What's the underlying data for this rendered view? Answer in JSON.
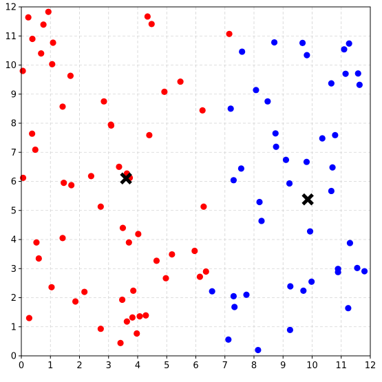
{
  "chart_data": {
    "type": "scatter",
    "title": "",
    "xlabel": "",
    "ylabel": "",
    "xlim": [
      0,
      12
    ],
    "ylim": [
      0,
      12
    ],
    "xticks": [
      0,
      1,
      2,
      3,
      4,
      5,
      6,
      7,
      8,
      9,
      10,
      11,
      12
    ],
    "yticks": [
      0,
      1,
      2,
      3,
      4,
      5,
      6,
      7,
      8,
      9,
      10,
      11,
      12
    ],
    "grid": true,
    "colors": {
      "cluster_a": "#ff0000",
      "cluster_b": "#0000ff",
      "centroid": "#000000",
      "grid": "#d3d3d3"
    },
    "series": [
      {
        "color": "#ff0000",
        "points": [
          [
            0.24,
            11.64
          ],
          [
            0.93,
            11.83
          ],
          [
            0.38,
            10.9
          ],
          [
            0.76,
            11.39
          ],
          [
            1.09,
            10.77
          ],
          [
            0.68,
            10.4
          ],
          [
            1.06,
            10.03
          ],
          [
            0.05,
            9.8
          ],
          [
            1.69,
            9.63
          ],
          [
            1.42,
            8.57
          ],
          [
            2.84,
            8.75
          ],
          [
            0.37,
            7.64
          ],
          [
            0.48,
            7.09
          ],
          [
            3.08,
            7.95
          ],
          [
            3.09,
            7.92
          ],
          [
            0.06,
            6.12
          ],
          [
            1.46,
            5.95
          ],
          [
            1.72,
            5.87
          ],
          [
            2.4,
            6.18
          ],
          [
            3.36,
            6.5
          ],
          [
            3.63,
            6.27
          ],
          [
            3.73,
            6.12
          ],
          [
            2.73,
            5.13
          ],
          [
            3.49,
            4.4
          ],
          [
            3.7,
            3.9
          ],
          [
            4.02,
            4.19
          ],
          [
            1.42,
            4.05
          ],
          [
            0.52,
            3.9
          ],
          [
            0.6,
            3.35
          ],
          [
            1.04,
            2.36
          ],
          [
            2.17,
            2.2
          ],
          [
            1.86,
            1.87
          ],
          [
            0.27,
            1.3
          ],
          [
            2.73,
            0.93
          ],
          [
            3.41,
            0.44
          ],
          [
            3.47,
            1.93
          ],
          [
            3.85,
            2.24
          ],
          [
            3.63,
            1.18
          ],
          [
            3.82,
            1.32
          ],
          [
            3.97,
            0.77
          ],
          [
            4.07,
            1.36
          ],
          [
            4.28,
            1.39
          ],
          [
            4.34,
            11.67
          ],
          [
            4.48,
            11.41
          ],
          [
            4.4,
            7.59
          ],
          [
            4.92,
            9.08
          ],
          [
            5.47,
            9.43
          ],
          [
            4.65,
            3.27
          ],
          [
            4.97,
            2.67
          ],
          [
            5.18,
            3.49
          ],
          [
            5.96,
            3.61
          ],
          [
            6.14,
            2.72
          ],
          [
            6.35,
            2.9
          ],
          [
            6.27,
            5.13
          ],
          [
            6.23,
            8.44
          ],
          [
            7.15,
            11.07
          ]
        ]
      },
      {
        "color": "#0000ff",
        "points": [
          [
            7.59,
            10.46
          ],
          [
            8.7,
            10.78
          ],
          [
            9.67,
            10.76
          ],
          [
            9.82,
            10.34
          ],
          [
            11.1,
            10.54
          ],
          [
            11.27,
            10.74
          ],
          [
            11.15,
            9.7
          ],
          [
            11.58,
            9.71
          ],
          [
            11.63,
            9.32
          ],
          [
            10.66,
            9.37
          ],
          [
            8.07,
            9.14
          ],
          [
            7.2,
            8.5
          ],
          [
            8.47,
            8.75
          ],
          [
            8.74,
            7.65
          ],
          [
            8.76,
            7.19
          ],
          [
            10.35,
            7.48
          ],
          [
            10.79,
            7.59
          ],
          [
            9.1,
            6.74
          ],
          [
            9.81,
            6.67
          ],
          [
            10.7,
            6.48
          ],
          [
            7.56,
            6.44
          ],
          [
            7.3,
            6.04
          ],
          [
            9.22,
            5.93
          ],
          [
            10.66,
            5.67
          ],
          [
            8.19,
            5.29
          ],
          [
            8.26,
            4.64
          ],
          [
            9.93,
            4.28
          ],
          [
            11.3,
            3.88
          ],
          [
            10.89,
            2.99
          ],
          [
            10.89,
            2.88
          ],
          [
            11.55,
            3.02
          ],
          [
            11.8,
            2.91
          ],
          [
            9.98,
            2.55
          ],
          [
            9.25,
            2.39
          ],
          [
            9.7,
            2.24
          ],
          [
            6.56,
            2.22
          ],
          [
            7.3,
            2.05
          ],
          [
            7.74,
            2.1
          ],
          [
            7.33,
            1.68
          ],
          [
            11.24,
            1.64
          ],
          [
            9.24,
            0.89
          ],
          [
            7.12,
            0.56
          ],
          [
            8.14,
            0.2
          ]
        ]
      }
    ],
    "centroids": [
      [
        3.6,
        6.1
      ],
      [
        9.85,
        5.38
      ]
    ]
  }
}
